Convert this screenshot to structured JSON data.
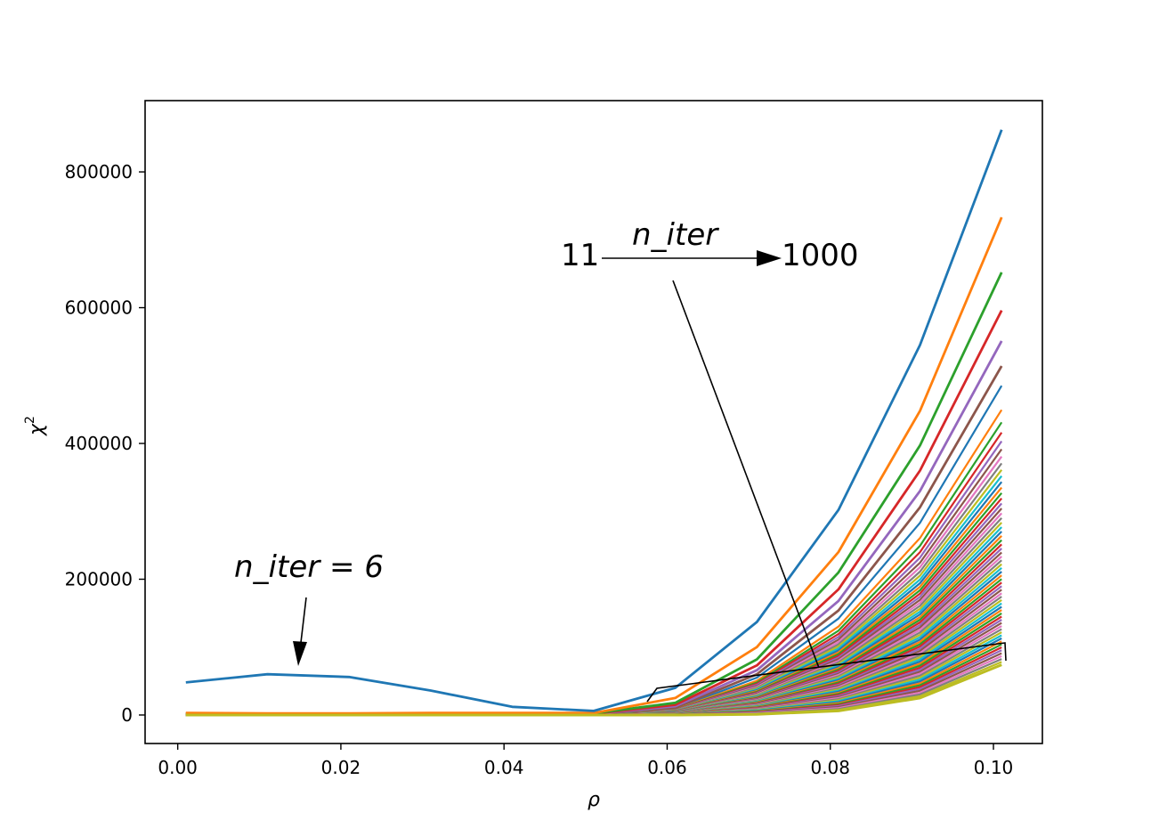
{
  "chart_data": {
    "type": "line",
    "title": "",
    "xlabel": "ρ",
    "ylabel": "χ",
    "ylabel_superscript": "2",
    "xlim": [
      -0.004,
      0.106
    ],
    "ylim": [
      -42000,
      905000
    ],
    "xticks": [
      0.0,
      0.02,
      0.04,
      0.06,
      0.08,
      0.1
    ],
    "xtick_labels": [
      "0.00",
      "0.02",
      "0.04",
      "0.06",
      "0.08",
      "0.10"
    ],
    "yticks": [
      0,
      200000,
      400000,
      600000,
      800000
    ],
    "ytick_labels": [
      "0",
      "200000",
      "400000",
      "600000",
      "800000"
    ],
    "grid": false,
    "legend": "none",
    "x": [
      0.001,
      0.011,
      0.021,
      0.031,
      0.041,
      0.051,
      0.061,
      0.071,
      0.081,
      0.091,
      0.101
    ],
    "highlighted_series": [
      {
        "label": "n_iter = 6",
        "color": "#1f77b4",
        "values": [
          48000,
          60000,
          56000,
          36000,
          12000,
          6000,
          40000,
          137000,
          302000,
          545000,
          862000
        ]
      },
      {
        "color": "#ff7f0e",
        "values": [
          3000,
          2500,
          2500,
          3000,
          3000,
          3000,
          25000,
          100000,
          240000,
          448000,
          733000
        ]
      },
      {
        "color": "#2ca02c",
        "values": [
          2000,
          2000,
          2000,
          2500,
          2500,
          2500,
          18000,
          82000,
          210000,
          397000,
          652000
        ]
      },
      {
        "color": "#d62728",
        "values": [
          1500,
          1500,
          1500,
          2000,
          2000,
          2000,
          15000,
          73000,
          185000,
          360000,
          596000
        ]
      },
      {
        "color": "#9467bd",
        "values": [
          1000,
          1000,
          1000,
          1500,
          1500,
          1500,
          13000,
          66000,
          168000,
          330000,
          551000
        ]
      },
      {
        "color": "#8c564b",
        "values": [
          1000,
          1000,
          1000,
          1000,
          1000,
          1000,
          11000,
          60000,
          154000,
          306000,
          514000
        ]
      }
    ],
    "bundle": {
      "description_free": true,
      "palette": [
        "#1f77b4",
        "#ff7f0e",
        "#2ca02c",
        "#d62728",
        "#9467bd",
        "#8c564b",
        "#e377c2",
        "#7f7f7f",
        "#bcbd22",
        "#17becf"
      ],
      "count": 60,
      "top_values": [
        0,
        0,
        0,
        0,
        0,
        0,
        9000,
        55000,
        142000,
        283000,
        485000
      ],
      "bottom_values": [
        0,
        0,
        0,
        0,
        0,
        0,
        0,
        1000,
        6000,
        25000,
        74000
      ]
    },
    "bottom_series": {
      "color": "#bcbd22",
      "values": [
        0,
        0,
        0,
        0,
        0,
        0,
        0,
        1000,
        6000,
        25000,
        74000
      ]
    },
    "annotations": {
      "n6_label": "n_iter = 6",
      "range_start": "11",
      "range_end": "1000",
      "range_label": "n_iter"
    }
  }
}
